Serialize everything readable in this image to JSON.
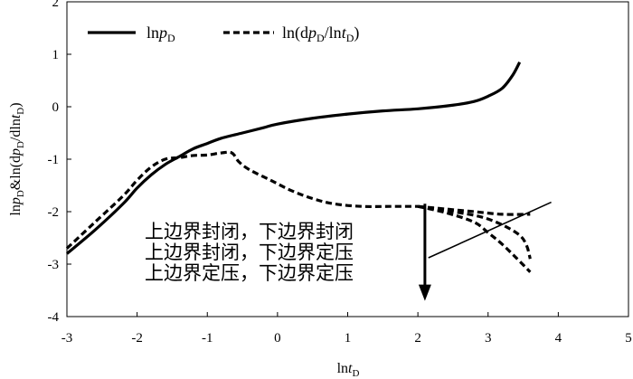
{
  "chart_data": {
    "type": "line",
    "xlabel": "lnt_D",
    "ylabel": "lnp_D&ln(dp_D/dlnt_D)",
    "xlim": [
      -3,
      5
    ],
    "ylim": [
      -4,
      2
    ],
    "xticks": [
      "-3",
      "-2",
      "-1",
      "0",
      "1",
      "2",
      "3",
      "4",
      "5"
    ],
    "yticks": [
      "2",
      "1",
      "0",
      "-1",
      "-2",
      "-3",
      "-4"
    ],
    "grid": false,
    "legend_position": "top-left",
    "legend": [
      {
        "label": "lnp_D",
        "style": "solid"
      },
      {
        "label": "ln(dp_D/lnt_D)",
        "style": "dashed"
      }
    ],
    "series": [
      {
        "name": "lnp_D",
        "style": "solid",
        "points": [
          [
            -3.0,
            -2.8
          ],
          [
            -2.6,
            -2.35
          ],
          [
            -2.2,
            -1.85
          ],
          [
            -2.0,
            -1.55
          ],
          [
            -1.8,
            -1.3
          ],
          [
            -1.6,
            -1.1
          ],
          [
            -1.4,
            -0.95
          ],
          [
            -1.2,
            -0.8
          ],
          [
            -1.0,
            -0.7
          ],
          [
            -0.8,
            -0.6
          ],
          [
            -0.5,
            -0.5
          ],
          [
            -0.2,
            -0.4
          ],
          [
            0.0,
            -0.33
          ],
          [
            0.5,
            -0.22
          ],
          [
            1.0,
            -0.14
          ],
          [
            1.5,
            -0.08
          ],
          [
            2.0,
            -0.04
          ],
          [
            2.5,
            0.03
          ],
          [
            2.8,
            0.1
          ],
          [
            3.0,
            0.2
          ],
          [
            3.2,
            0.35
          ],
          [
            3.35,
            0.6
          ],
          [
            3.45,
            0.85
          ]
        ]
      },
      {
        "name": "ln(dp_D/lnt_D)",
        "style": "dashed",
        "points": [
          [
            -3.0,
            -2.7
          ],
          [
            -2.6,
            -2.2
          ],
          [
            -2.2,
            -1.7
          ],
          [
            -2.0,
            -1.4
          ],
          [
            -1.8,
            -1.15
          ],
          [
            -1.6,
            -1.0
          ],
          [
            -1.4,
            -0.97
          ],
          [
            -1.2,
            -0.93
          ],
          [
            -1.0,
            -0.92
          ],
          [
            -0.8,
            -0.88
          ],
          [
            -0.65,
            -0.88
          ],
          [
            -0.55,
            -1.05
          ],
          [
            -0.4,
            -1.2
          ],
          [
            -0.1,
            -1.4
          ],
          [
            0.2,
            -1.6
          ],
          [
            0.5,
            -1.75
          ],
          [
            0.8,
            -1.85
          ],
          [
            1.2,
            -1.9
          ],
          [
            1.6,
            -1.9
          ],
          [
            2.0,
            -1.9
          ]
        ]
      },
      {
        "name": "upper-closed-lower-closed",
        "style": "dashed",
        "points": [
          [
            2.0,
            -1.9
          ],
          [
            2.4,
            -1.95
          ],
          [
            2.8,
            -2.0
          ],
          [
            3.2,
            -2.05
          ],
          [
            3.6,
            -2.05
          ]
        ]
      },
      {
        "name": "upper-closed-lower-constant-pressure",
        "style": "dashed",
        "points": [
          [
            2.0,
            -1.9
          ],
          [
            2.5,
            -2.0
          ],
          [
            2.9,
            -2.1
          ],
          [
            3.2,
            -2.25
          ],
          [
            3.45,
            -2.45
          ],
          [
            3.55,
            -2.65
          ],
          [
            3.6,
            -2.9
          ]
        ]
      },
      {
        "name": "upper-constant-pressure-lower-constant-pressure",
        "style": "dashed",
        "points": [
          [
            2.0,
            -1.9
          ],
          [
            2.4,
            -2.02
          ],
          [
            2.8,
            -2.2
          ],
          [
            3.0,
            -2.4
          ],
          [
            3.2,
            -2.62
          ],
          [
            3.4,
            -2.88
          ],
          [
            3.6,
            -3.15
          ]
        ]
      }
    ],
    "annotations": {
      "lines": [
        "上边界封闭，下边界封闭",
        "上边界封闭，下边界定压",
        "上边界定压，下边界定压"
      ],
      "arrow": {
        "x": 2.1,
        "y_from": -1.85,
        "y_to": -3.7
      },
      "diagonal": {
        "from": [
          2.15,
          -2.88
        ],
        "to": [
          3.9,
          -1.82
        ]
      }
    }
  }
}
